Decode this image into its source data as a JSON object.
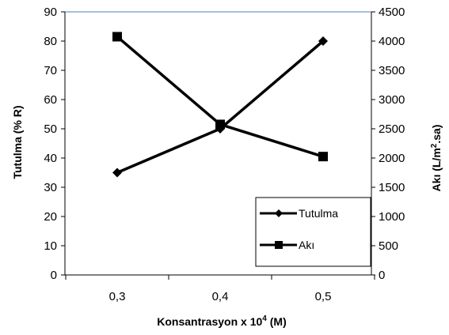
{
  "chart_data": {
    "type": "line",
    "xlabel_main": "Konsantrasyon x 10",
    "xlabel_sup": "4",
    "xlabel_tail": " (M)",
    "ylabel": "Tutulma (% R)",
    "y2label_main": "Akı (L/m",
    "y2label_sup": "2",
    "y2label_tail": ".sa)",
    "categories": [
      "0,3",
      "0,4",
      "0,5"
    ],
    "ylim": [
      0,
      90
    ],
    "yticks": [
      "0",
      "10",
      "20",
      "30",
      "40",
      "50",
      "60",
      "70",
      "80",
      "90"
    ],
    "y2lim": [
      0,
      4500
    ],
    "y2ticks": [
      "0",
      "500",
      "1000",
      "1500",
      "2000",
      "2500",
      "3000",
      "3500",
      "4000",
      "4500"
    ],
    "legend_position": "bottom-right",
    "series": [
      {
        "name": "Tutulma",
        "axis": "left",
        "marker": "diamond",
        "color": "#000000",
        "values": [
          35,
          50,
          80
        ]
      },
      {
        "name": "Akı",
        "axis": "right",
        "marker": "square",
        "color": "#000000",
        "values": [
          4075,
          2575,
          2025
        ]
      }
    ]
  }
}
